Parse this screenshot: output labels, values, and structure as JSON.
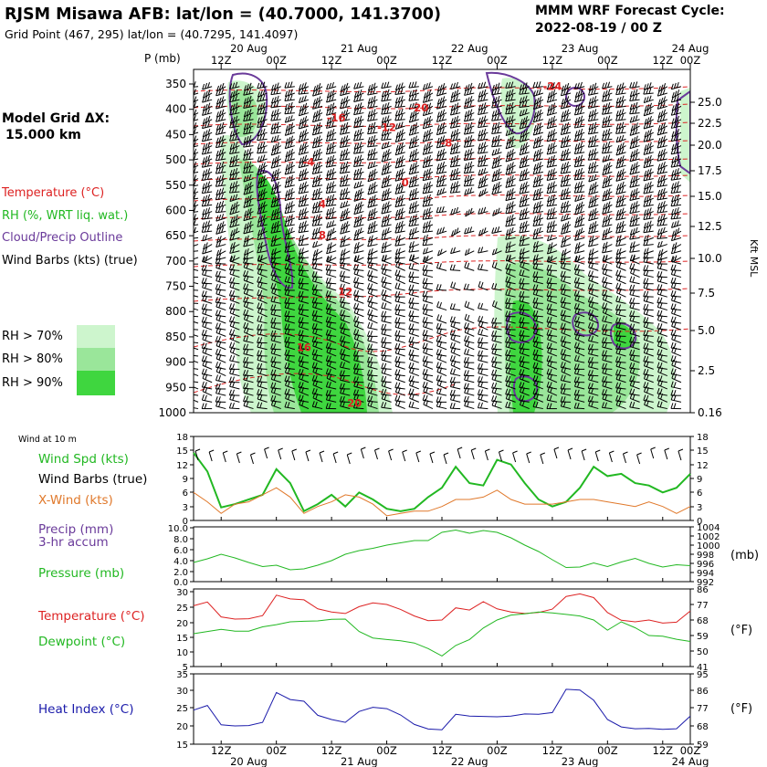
{
  "header": {
    "title": "RJSM Misawa AFB:  lat/lon = (40.7000, 141.3700)",
    "grid_point": "Grid Point (467, 295) lat/lon = (40.7295, 141.4097)",
    "forecast_title": "MMM WRF Forecast Cycle:",
    "forecast_cycle": "2022-08-19 / 00  Z"
  },
  "model_grid": {
    "label": "Model Grid ΔX:",
    "value": "15.000 km"
  },
  "legend": {
    "temperature": "Temperature (°C)",
    "rh": "RH (%, WRT liq. wat.)",
    "cloud": "Cloud/Precip Outline",
    "wind": "Wind Barbs (kts) (true)",
    "rh70": "RH > 70%",
    "rh80": "RH > 80%",
    "rh90": "RH > 90%",
    "colors": {
      "rh70": "#cdf5cd",
      "rh80": "#9ae69a",
      "rh90": "#3fd63f"
    }
  },
  "axes": {
    "pressure_label": "P (mb)",
    "kft_label": "Kft MSL",
    "time_ticks": [
      "12Z",
      "00Z",
      "12Z",
      "00Z",
      "12Z",
      "00Z",
      "12Z",
      "00Z",
      "12Z",
      "00Z"
    ],
    "date_ticks": [
      "20 Aug",
      "21 Aug",
      "22 Aug",
      "23 Aug",
      "24 Aug"
    ]
  },
  "chart_data": [
    {
      "type": "heatmap",
      "name": "cross-section",
      "x_range_hours": [
        12,
        120
      ],
      "pressure_ticks": [
        350,
        400,
        450,
        500,
        550,
        600,
        650,
        700,
        750,
        800,
        850,
        900,
        950,
        1000
      ],
      "kft_ticks": [
        "25.0",
        "22.5",
        "20.0",
        "17.5",
        "15.0",
        "12.5",
        "10.0",
        "7.5",
        "5.0",
        "2.5",
        "0.16"
      ],
      "temperature_contour_labels": [
        {
          "value": "-24",
          "hour": 90,
          "p": 362
        },
        {
          "value": "-20",
          "hour": 61,
          "p": 404
        },
        {
          "value": "-16",
          "hour": 43,
          "p": 424
        },
        {
          "value": "-12",
          "hour": 54,
          "p": 443
        },
        {
          "value": "-8",
          "hour": 67,
          "p": 474
        },
        {
          "value": "-4",
          "hour": 37,
          "p": 512
        },
        {
          "value": "0",
          "hour": 58,
          "p": 552
        },
        {
          "value": "4",
          "hour": 40,
          "p": 595
        },
        {
          "value": "8",
          "hour": 40,
          "p": 656
        },
        {
          "value": "12",
          "hour": 45,
          "p": 768
        },
        {
          "value": "16",
          "hour": 36,
          "p": 878
        },
        {
          "value": "20",
          "hour": 47,
          "p": 988
        }
      ]
    },
    {
      "type": "line",
      "name": "wind",
      "label_title": "Wind at 10 m",
      "left_ticks": [
        "18",
        "15",
        "12",
        "9",
        "6",
        "3",
        "0"
      ],
      "right_ticks": [
        "18",
        "15",
        "12",
        "9",
        "6",
        "3",
        "0"
      ],
      "ylim": [
        0,
        18
      ],
      "series": [
        {
          "name": "Wind Spd (kts)",
          "color": "#22b822",
          "x": [
            12,
            15,
            18,
            21,
            24,
            27,
            30,
            33,
            36,
            39,
            42,
            45,
            48,
            51,
            54,
            57,
            60,
            63,
            66,
            69,
            72,
            75,
            78,
            81,
            84,
            87,
            90,
            93,
            96,
            99,
            102,
            105,
            108,
            111,
            114,
            117,
            120
          ],
          "values": [
            14.5,
            10.5,
            2.8,
            3.5,
            4.5,
            5.5,
            11,
            8,
            2,
            3.5,
            5.5,
            3,
            6,
            4.5,
            2.5,
            2,
            2.5,
            5,
            7,
            11.5,
            8,
            7.5,
            13,
            12,
            8,
            4.5,
            3,
            4,
            7,
            11.5,
            9.5,
            10,
            8,
            7.5,
            6,
            7,
            10
          ]
        },
        {
          "name": "X-Wind (kts)",
          "color": "#e0782a",
          "x": [
            12,
            15,
            18,
            21,
            24,
            27,
            30,
            33,
            36,
            39,
            42,
            45,
            48,
            51,
            54,
            57,
            60,
            63,
            66,
            69,
            72,
            75,
            78,
            81,
            84,
            87,
            90,
            93,
            96,
            99,
            102,
            105,
            108,
            111,
            114,
            117,
            120
          ],
          "values": [
            6,
            4,
            1.5,
            3.5,
            4,
            5.5,
            7,
            5,
            1.5,
            3,
            4,
            5.5,
            5,
            3.5,
            1,
            1.5,
            2,
            2,
            3,
            4.5,
            4.5,
            5,
            6.5,
            4.5,
            3.5,
            3.5,
            3.5,
            4,
            4.5,
            4.5,
            4,
            3.5,
            3,
            4,
            3,
            1.5,
            3
          ]
        }
      ]
    },
    {
      "type": "line",
      "name": "pressure",
      "labels": [
        "Precip (mm)",
        "3-hr accum",
        "Pressure (mb)"
      ],
      "left_ticks": [
        "10.0",
        "8.0",
        "6.0",
        "4.0",
        "2.0",
        "0.0"
      ],
      "right_ticks": [
        "1004",
        "1002",
        "1000",
        "998",
        "996",
        "994",
        "992"
      ],
      "right_unit": "(mb)",
      "ylim": [
        992,
        1004
      ],
      "series": [
        {
          "name": "Pressure (mb)",
          "color": "#22b822",
          "x": [
            12,
            15,
            18,
            21,
            24,
            27,
            30,
            33,
            36,
            39,
            42,
            45,
            48,
            51,
            54,
            57,
            60,
            63,
            66,
            69,
            72,
            75,
            78,
            81,
            84,
            87,
            90,
            93,
            96,
            99,
            102,
            105,
            108,
            111,
            114,
            117,
            120
          ],
          "values": [
            996.2,
            997,
            998,
            997.2,
            996.2,
            995.3,
            995.6,
            994.6,
            994.8,
            995.6,
            996.6,
            998,
            998.8,
            999.3,
            1000,
            1000.5,
            1001,
            1001,
            1002.8,
            1003.3,
            1002.6,
            1003.2,
            1002.8,
            1001.6,
            1000,
            998.6,
            996.8,
            995.1,
            995.2,
            996.1,
            995.3,
            996.3,
            997.1,
            996,
            995.2,
            995.7,
            995.5
          ]
        }
      ]
    },
    {
      "type": "line",
      "name": "temperature",
      "labels": [
        "Temperature (°C)",
        "Dewpoint (°C)"
      ],
      "left_ticks": [
        "30",
        "25",
        "20",
        "15",
        "10",
        "5"
      ],
      "right_ticks": [
        "86",
        "77",
        "68",
        "59",
        "50",
        "41"
      ],
      "right_unit": "(°F)",
      "ylim": [
        5,
        30
      ],
      "series": [
        {
          "name": "Temperature (°C)",
          "color": "#dd2222",
          "x": [
            12,
            15,
            18,
            21,
            24,
            27,
            30,
            33,
            36,
            39,
            42,
            45,
            48,
            51,
            54,
            57,
            60,
            63,
            66,
            69,
            72,
            75,
            78,
            81,
            84,
            87,
            90,
            93,
            96,
            99,
            102,
            105,
            108,
            111,
            114,
            117,
            120
          ],
          "values": [
            24.6,
            25.8,
            21,
            20.3,
            20.4,
            21.4,
            28,
            26.8,
            26.5,
            23.6,
            22.6,
            22.1,
            24.3,
            25.5,
            25,
            23.4,
            21.3,
            19.8,
            20,
            23.9,
            23.2,
            25.9,
            23.6,
            22.6,
            22.1,
            22.4,
            23.5,
            27.6,
            28.4,
            27.2,
            22.4,
            19.9,
            19.4,
            20,
            19,
            19.3,
            22.9
          ]
        },
        {
          "name": "Dewpoint (°C)",
          "color": "#22b822",
          "x": [
            12,
            15,
            18,
            21,
            24,
            27,
            30,
            33,
            36,
            39,
            42,
            45,
            48,
            51,
            54,
            57,
            60,
            63,
            66,
            69,
            72,
            75,
            78,
            81,
            84,
            87,
            90,
            93,
            96,
            99,
            102,
            105,
            108,
            111,
            114,
            117,
            120
          ],
          "values": [
            15.6,
            16.3,
            17,
            16.4,
            16.4,
            17.8,
            18.5,
            19.4,
            19.6,
            19.7,
            20.2,
            20.3,
            16.3,
            14.2,
            13.7,
            13.3,
            12.6,
            10.8,
            8.4,
            11.8,
            13.7,
            17.4,
            20,
            21.6,
            22,
            22.6,
            22.3,
            21.8,
            21.3,
            20,
            16.7,
            19.4,
            17.5,
            15,
            14.8,
            13.8,
            13.1
          ]
        }
      ]
    },
    {
      "type": "line",
      "name": "heat-index",
      "labels": [
        "Heat Index (°C)"
      ],
      "left_ticks": [
        "35",
        "30",
        "25",
        "20",
        "15"
      ],
      "right_ticks": [
        "95",
        "86",
        "77",
        "68",
        "59"
      ],
      "right_unit": "(°F)",
      "ylim": [
        15,
        35
      ],
      "series": [
        {
          "name": "Heat Index (°C)",
          "color": "#1a1aaa",
          "x": [
            12,
            15,
            18,
            21,
            24,
            27,
            30,
            33,
            36,
            39,
            42,
            45,
            48,
            51,
            54,
            57,
            60,
            63,
            66,
            69,
            72,
            75,
            78,
            81,
            84,
            87,
            90,
            93,
            96,
            99,
            102,
            105,
            108,
            111,
            114,
            117,
            120
          ],
          "values": [
            24.7,
            26,
            20.5,
            20.2,
            20.3,
            21.2,
            29.7,
            27.7,
            27.2,
            23.2,
            22,
            21.2,
            24.3,
            25.5,
            25.1,
            23.3,
            20.6,
            19.3,
            19.1,
            23.5,
            23,
            22.9,
            22.8,
            23,
            23.6,
            23.5,
            24,
            30.6,
            30.4,
            27.5,
            22,
            19.9,
            19.4,
            19.5,
            19.2,
            19.4,
            23
          ]
        }
      ]
    }
  ]
}
